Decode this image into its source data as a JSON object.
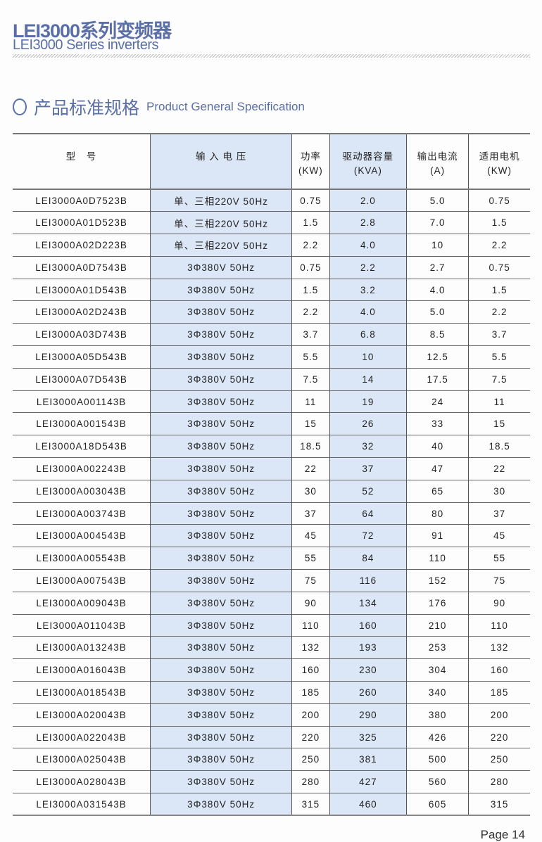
{
  "header": {
    "title_cn": "LEI3000系列变频器",
    "title_en": "LEI3000 Series inverters"
  },
  "section": {
    "title_cn": "产品标准规格",
    "title_en": "Product General Specification",
    "icon": "circle-icon"
  },
  "colors": {
    "accent": "#5a6fa8",
    "highlight_column": "#dbe7f6"
  },
  "table": {
    "headers": [
      [
        "型　号"
      ],
      [
        "输 入 电 压"
      ],
      [
        "功率",
        "(KW)"
      ],
      [
        "驱动器容量",
        "(KVA)"
      ],
      [
        "输出电流",
        "(A)"
      ],
      [
        "适用电机",
        "(KW)"
      ]
    ],
    "rows": [
      [
        "LEI3000A0D7523B",
        "单、三相220V 50Hz",
        "0.75",
        "2.0",
        "5.0",
        "0.75"
      ],
      [
        "LEI3000A01D523B",
        "单、三相220V 50Hz",
        "1.5",
        "2.8",
        "7.0",
        "1.5"
      ],
      [
        "LEI3000A02D223B",
        "单、三相220V 50Hz",
        "2.2",
        "4.0",
        "10",
        "2.2"
      ],
      [
        "LEI3000A0D7543B",
        "3Φ380V 50Hz",
        "0.75",
        "2.2",
        "2.7",
        "0.75"
      ],
      [
        "LEI3000A01D543B",
        "3Φ380V 50Hz",
        "1.5",
        "3.2",
        "4.0",
        "1.5"
      ],
      [
        "LEI3000A02D243B",
        "3Φ380V 50Hz",
        "2.2",
        "4.0",
        "5.0",
        "2.2"
      ],
      [
        "LEI3000A03D743B",
        "3Φ380V 50Hz",
        "3.7",
        "6.8",
        "8.5",
        "3.7"
      ],
      [
        "LEI3000A05D543B",
        "3Φ380V 50Hz",
        "5.5",
        "10",
        "12.5",
        "5.5"
      ],
      [
        "LEI3000A07D543B",
        "3Φ380V 50Hz",
        "7.5",
        "14",
        "17.5",
        "7.5"
      ],
      [
        "LEI3000A001143B",
        "3Φ380V 50Hz",
        "11",
        "19",
        "24",
        "11"
      ],
      [
        "LEI3000A001543B",
        "3Φ380V 50Hz",
        "15",
        "26",
        "33",
        "15"
      ],
      [
        "LEI3000A18D543B",
        "3Φ380V 50Hz",
        "18.5",
        "32",
        "40",
        "18.5"
      ],
      [
        "LEI3000A002243B",
        "3Φ380V 50Hz",
        "22",
        "37",
        "47",
        "22"
      ],
      [
        "LEI3000A003043B",
        "3Φ380V 50Hz",
        "30",
        "52",
        "65",
        "30"
      ],
      [
        "LEI3000A003743B",
        "3Φ380V 50Hz",
        "37",
        "64",
        "80",
        "37"
      ],
      [
        "LEI3000A004543B",
        "3Φ380V 50Hz",
        "45",
        "72",
        "91",
        "45"
      ],
      [
        "LEI3000A005543B",
        "3Φ380V 50Hz",
        "55",
        "84",
        "110",
        "55"
      ],
      [
        "LEI3000A007543B",
        "3Φ380V 50Hz",
        "75",
        "116",
        "152",
        "75"
      ],
      [
        "LEI3000A009043B",
        "3Φ380V 50Hz",
        "90",
        "134",
        "176",
        "90"
      ],
      [
        "LEI3000A011043B",
        "3Φ380V 50Hz",
        "110",
        "160",
        "210",
        "110"
      ],
      [
        "LEI3000A013243B",
        "3Φ380V 50Hz",
        "132",
        "193",
        "253",
        "132"
      ],
      [
        "LEI3000A016043B",
        "3Φ380V 50Hz",
        "160",
        "230",
        "304",
        "160"
      ],
      [
        "LEI3000A018543B",
        "3Φ380V 50Hz",
        "185",
        "260",
        "340",
        "185"
      ],
      [
        "LEI3000A020043B",
        "3Φ380V 50Hz",
        "200",
        "290",
        "380",
        "200"
      ],
      [
        "LEI3000A022043B",
        "3Φ380V 50Hz",
        "220",
        "325",
        "426",
        "220"
      ],
      [
        "LEI3000A025043B",
        "3Φ380V 50Hz",
        "250",
        "381",
        "500",
        "250"
      ],
      [
        "LEI3000A028043B",
        "3Φ380V 50Hz",
        "280",
        "427",
        "560",
        "280"
      ],
      [
        "LEI3000A031543B",
        "3Φ380V 50Hz",
        "315",
        "460",
        "605",
        "315"
      ]
    ]
  },
  "footer": {
    "page": "Page  14"
  }
}
